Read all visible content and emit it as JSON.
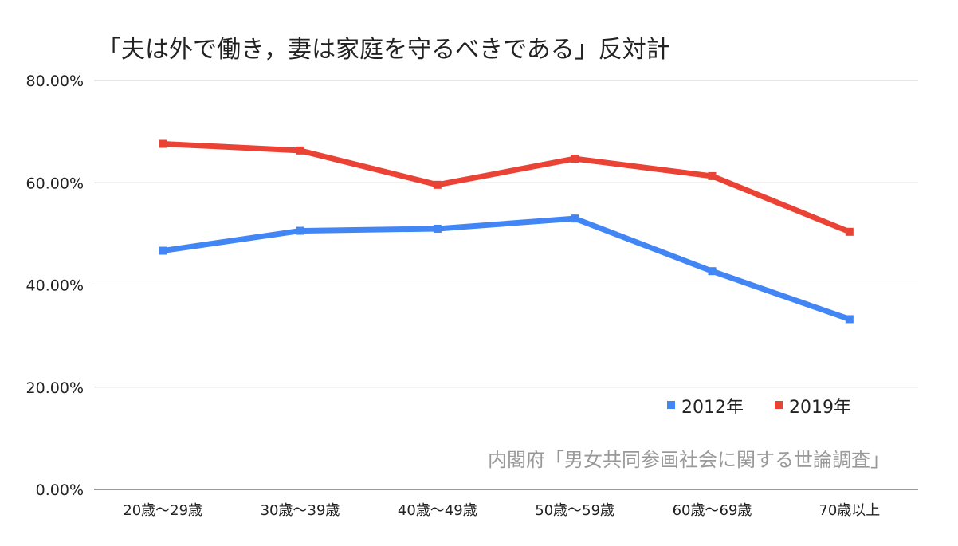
{
  "chart_data": {
    "type": "line",
    "title": "「夫は外で働き，妻は家庭を守るべきである」反対計",
    "categories": [
      "20歳～29歳",
      "30歳～39歳",
      "40歳～49歳",
      "50歳～59歳",
      "60歳～69歳",
      "70歳以上"
    ],
    "series": [
      {
        "name": "2012年",
        "color": "#4285f4",
        "values": [
          46.7,
          50.6,
          51.0,
          53.0,
          42.7,
          33.3
        ]
      },
      {
        "name": "2019年",
        "color": "#ea4335",
        "values": [
          67.6,
          66.3,
          59.6,
          64.7,
          61.3,
          50.4
        ]
      }
    ],
    "ylim": [
      0,
      80
    ],
    "yticks": [
      "0.00%",
      "20.00%",
      "40.00%",
      "60.00%",
      "80.00%"
    ],
    "ytick_values": [
      0,
      20,
      40,
      60,
      80
    ],
    "grid": true,
    "legend_position": "bottom-right",
    "annotation": "内閣府「男女共同参画社会に関する世論調査」"
  }
}
